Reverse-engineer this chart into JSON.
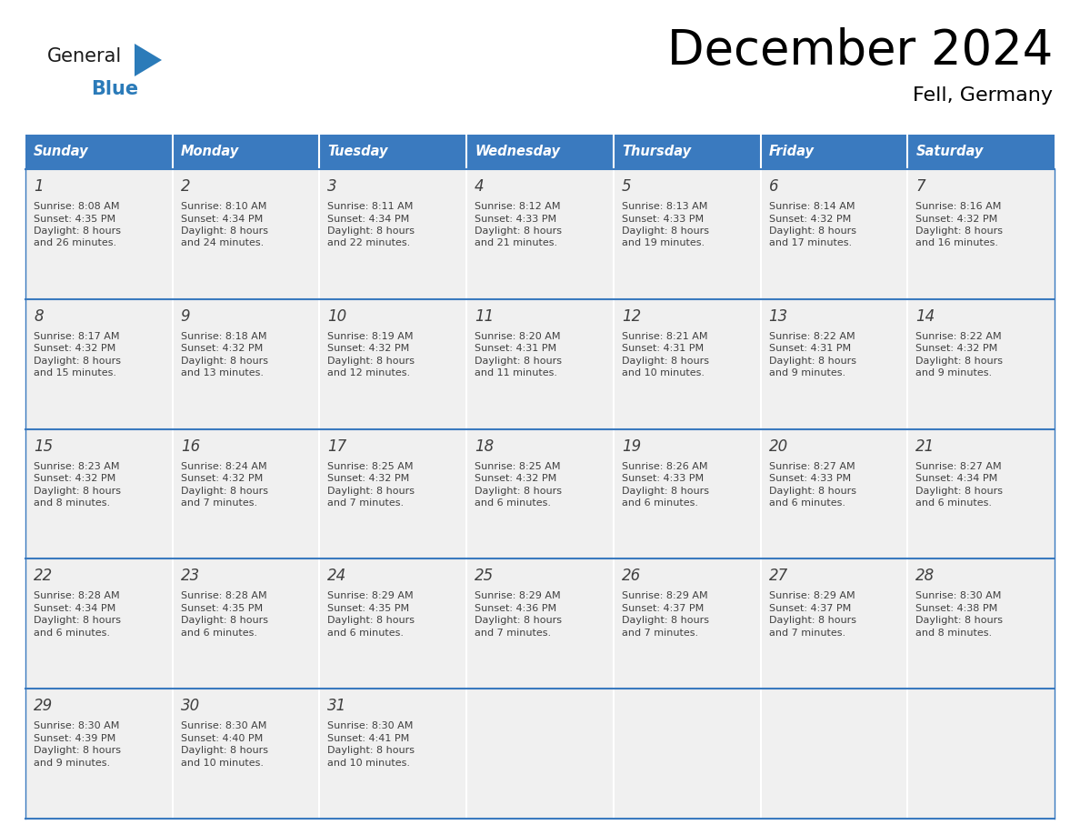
{
  "title": "December 2024",
  "subtitle": "Fell, Germany",
  "header_bg": "#3a7abf",
  "header_text_color": "#ffffff",
  "cell_bg": "#f0f0f0",
  "day_names": [
    "Sunday",
    "Monday",
    "Tuesday",
    "Wednesday",
    "Thursday",
    "Friday",
    "Saturday"
  ],
  "weeks": [
    [
      {
        "day": 1,
        "sunrise": "8:08 AM",
        "sunset": "4:35 PM",
        "daylight": "8 hours\nand 26 minutes."
      },
      {
        "day": 2,
        "sunrise": "8:10 AM",
        "sunset": "4:34 PM",
        "daylight": "8 hours\nand 24 minutes."
      },
      {
        "day": 3,
        "sunrise": "8:11 AM",
        "sunset": "4:34 PM",
        "daylight": "8 hours\nand 22 minutes."
      },
      {
        "day": 4,
        "sunrise": "8:12 AM",
        "sunset": "4:33 PM",
        "daylight": "8 hours\nand 21 minutes."
      },
      {
        "day": 5,
        "sunrise": "8:13 AM",
        "sunset": "4:33 PM",
        "daylight": "8 hours\nand 19 minutes."
      },
      {
        "day": 6,
        "sunrise": "8:14 AM",
        "sunset": "4:32 PM",
        "daylight": "8 hours\nand 17 minutes."
      },
      {
        "day": 7,
        "sunrise": "8:16 AM",
        "sunset": "4:32 PM",
        "daylight": "8 hours\nand 16 minutes."
      }
    ],
    [
      {
        "day": 8,
        "sunrise": "8:17 AM",
        "sunset": "4:32 PM",
        "daylight": "8 hours\nand 15 minutes."
      },
      {
        "day": 9,
        "sunrise": "8:18 AM",
        "sunset": "4:32 PM",
        "daylight": "8 hours\nand 13 minutes."
      },
      {
        "day": 10,
        "sunrise": "8:19 AM",
        "sunset": "4:32 PM",
        "daylight": "8 hours\nand 12 minutes."
      },
      {
        "day": 11,
        "sunrise": "8:20 AM",
        "sunset": "4:31 PM",
        "daylight": "8 hours\nand 11 minutes."
      },
      {
        "day": 12,
        "sunrise": "8:21 AM",
        "sunset": "4:31 PM",
        "daylight": "8 hours\nand 10 minutes."
      },
      {
        "day": 13,
        "sunrise": "8:22 AM",
        "sunset": "4:31 PM",
        "daylight": "8 hours\nand 9 minutes."
      },
      {
        "day": 14,
        "sunrise": "8:22 AM",
        "sunset": "4:32 PM",
        "daylight": "8 hours\nand 9 minutes."
      }
    ],
    [
      {
        "day": 15,
        "sunrise": "8:23 AM",
        "sunset": "4:32 PM",
        "daylight": "8 hours\nand 8 minutes."
      },
      {
        "day": 16,
        "sunrise": "8:24 AM",
        "sunset": "4:32 PM",
        "daylight": "8 hours\nand 7 minutes."
      },
      {
        "day": 17,
        "sunrise": "8:25 AM",
        "sunset": "4:32 PM",
        "daylight": "8 hours\nand 7 minutes."
      },
      {
        "day": 18,
        "sunrise": "8:25 AM",
        "sunset": "4:32 PM",
        "daylight": "8 hours\nand 6 minutes."
      },
      {
        "day": 19,
        "sunrise": "8:26 AM",
        "sunset": "4:33 PM",
        "daylight": "8 hours\nand 6 minutes."
      },
      {
        "day": 20,
        "sunrise": "8:27 AM",
        "sunset": "4:33 PM",
        "daylight": "8 hours\nand 6 minutes."
      },
      {
        "day": 21,
        "sunrise": "8:27 AM",
        "sunset": "4:34 PM",
        "daylight": "8 hours\nand 6 minutes."
      }
    ],
    [
      {
        "day": 22,
        "sunrise": "8:28 AM",
        "sunset": "4:34 PM",
        "daylight": "8 hours\nand 6 minutes."
      },
      {
        "day": 23,
        "sunrise": "8:28 AM",
        "sunset": "4:35 PM",
        "daylight": "8 hours\nand 6 minutes."
      },
      {
        "day": 24,
        "sunrise": "8:29 AM",
        "sunset": "4:35 PM",
        "daylight": "8 hours\nand 6 minutes."
      },
      {
        "day": 25,
        "sunrise": "8:29 AM",
        "sunset": "4:36 PM",
        "daylight": "8 hours\nand 7 minutes."
      },
      {
        "day": 26,
        "sunrise": "8:29 AM",
        "sunset": "4:37 PM",
        "daylight": "8 hours\nand 7 minutes."
      },
      {
        "day": 27,
        "sunrise": "8:29 AM",
        "sunset": "4:37 PM",
        "daylight": "8 hours\nand 7 minutes."
      },
      {
        "day": 28,
        "sunrise": "8:30 AM",
        "sunset": "4:38 PM",
        "daylight": "8 hours\nand 8 minutes."
      }
    ],
    [
      {
        "day": 29,
        "sunrise": "8:30 AM",
        "sunset": "4:39 PM",
        "daylight": "8 hours\nand 9 minutes."
      },
      {
        "day": 30,
        "sunrise": "8:30 AM",
        "sunset": "4:40 PM",
        "daylight": "8 hours\nand 10 minutes."
      },
      {
        "day": 31,
        "sunrise": "8:30 AM",
        "sunset": "4:41 PM",
        "daylight": "8 hours\nand 10 minutes."
      },
      null,
      null,
      null,
      null
    ]
  ],
  "logo_general_color": "#1a1a1a",
  "logo_blue_color": "#2b7bb9",
  "grid_color": "#3a7abf",
  "text_color": "#404040"
}
